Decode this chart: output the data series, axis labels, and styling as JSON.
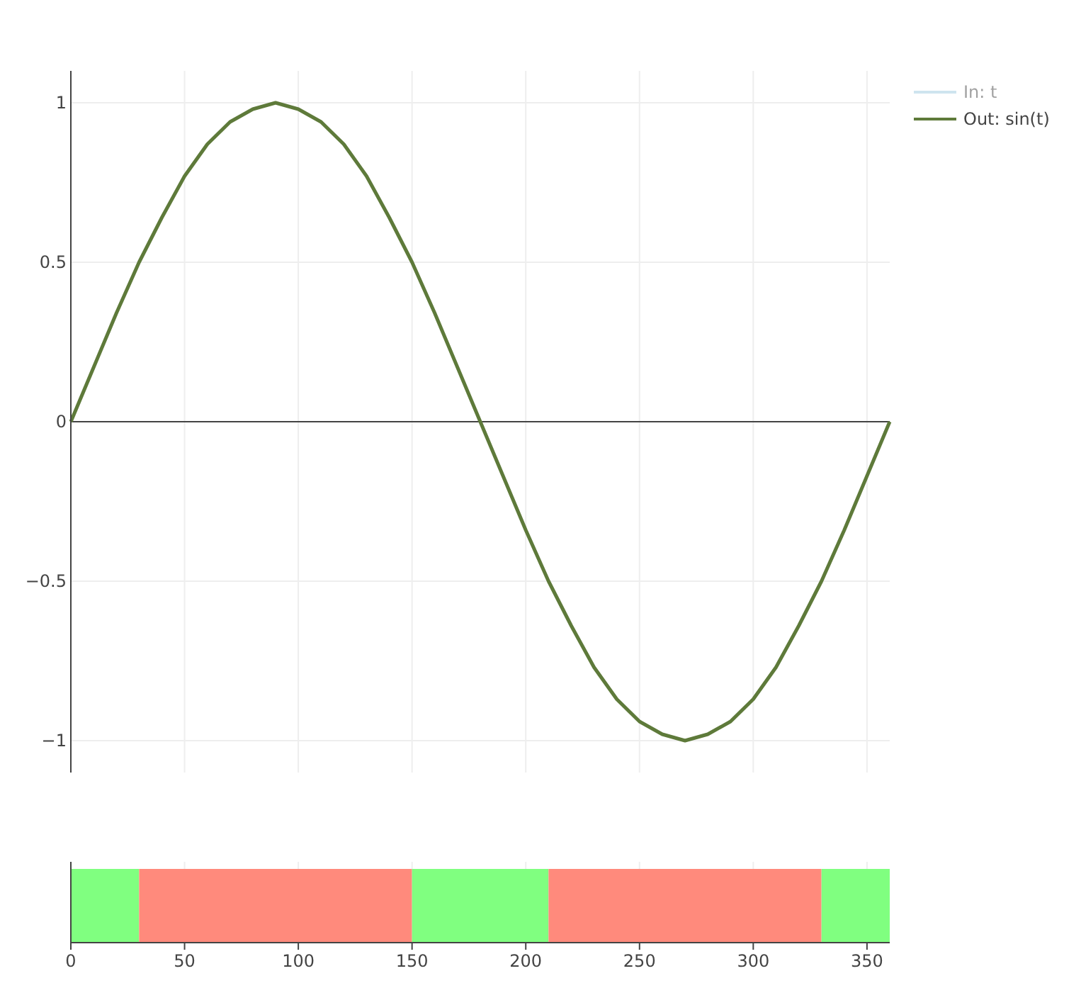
{
  "chart_data": [
    {
      "type": "line",
      "x": [
        0,
        10,
        20,
        30,
        40,
        50,
        60,
        70,
        80,
        90,
        100,
        110,
        120,
        130,
        140,
        150,
        160,
        170,
        180,
        190,
        200,
        210,
        220,
        230,
        240,
        250,
        260,
        270,
        280,
        290,
        300,
        310,
        320,
        330,
        340,
        350,
        360
      ],
      "series": [
        {
          "name": "In: t",
          "color": "#9ecae1",
          "values": [
            null,
            null,
            null,
            null,
            null,
            null,
            null,
            null,
            null,
            null,
            null,
            null,
            null,
            null,
            null,
            null,
            null,
            null,
            null,
            null,
            null,
            null,
            null,
            null,
            null,
            null,
            null,
            null,
            null,
            null,
            null,
            null,
            null,
            null,
            null,
            null,
            null
          ]
        },
        {
          "name": "Out: sin(t)",
          "color": "#5e7a3a",
          "values": [
            0,
            0.17,
            0.34,
            0.5,
            0.64,
            0.77,
            0.87,
            0.94,
            0.98,
            1,
            0.98,
            0.94,
            0.87,
            0.77,
            0.64,
            0.5,
            0.34,
            0.17,
            0,
            -0.17,
            -0.34,
            -0.5,
            -0.64,
            -0.77,
            -0.87,
            -0.94,
            -0.98,
            -1,
            -0.98,
            -0.94,
            -0.87,
            -0.77,
            -0.64,
            -0.5,
            -0.34,
            -0.17,
            0
          ]
        }
      ],
      "xlim": [
        0,
        360
      ],
      "xticks": [
        0,
        50,
        100,
        150,
        200,
        250,
        300,
        350
      ],
      "ylim": [
        -1.1,
        1.1
      ],
      "yticks": [
        -1,
        -0.5,
        0,
        0.5,
        1
      ],
      "grid": true,
      "legend": "top right",
      "marker": "none",
      "line_style": "solid",
      "tick_labels": "y"
    },
    {
      "type": "bar",
      "orientation": "horizontal",
      "stacked": true,
      "categories": [
        null
      ],
      "xlim": [
        0,
        360
      ],
      "xticks": [
        0,
        50,
        100,
        150,
        200,
        250,
        300,
        350
      ],
      "grid": "x",
      "tick_labels": "x",
      "series": [
        {
          "color": "#80ff80",
          "values": [
            30
          ]
        },
        {
          "color": "#ff8a7c",
          "values": [
            120
          ]
        },
        {
          "color": "#80ff80",
          "values": [
            60
          ]
        },
        {
          "color": "#ff8a7c",
          "values": [
            120
          ]
        },
        {
          "color": "#80ff80",
          "values": [
            30
          ]
        }
      ]
    }
  ]
}
